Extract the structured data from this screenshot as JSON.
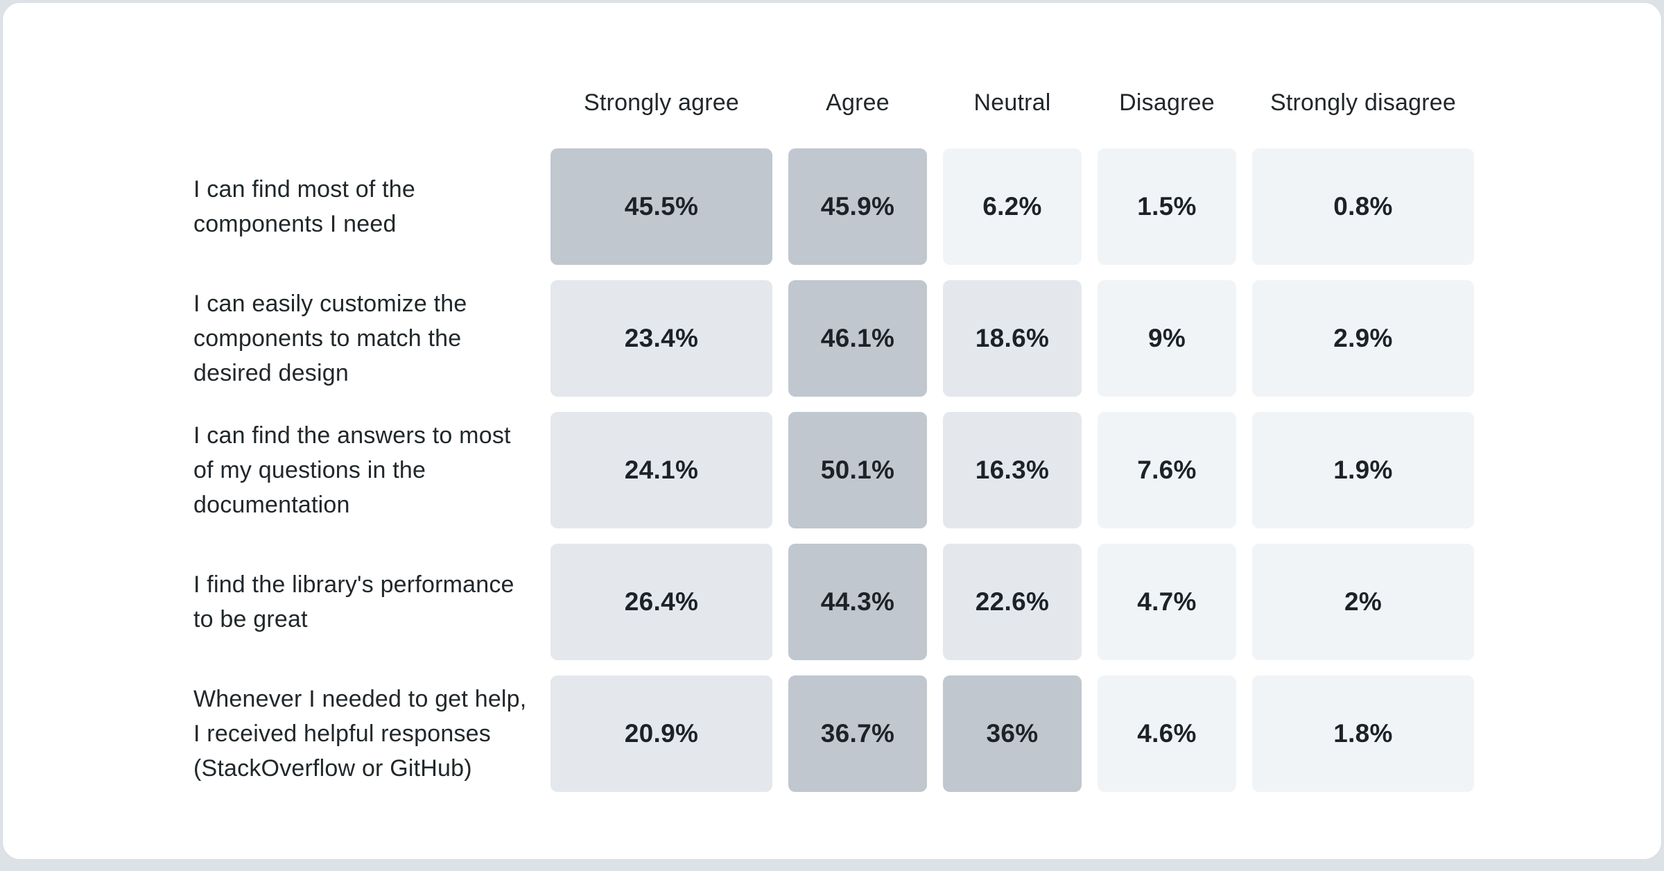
{
  "page": {
    "background_color": "#dde2e7",
    "card_background": "#ffffff",
    "card_border_color": "#d6dbe1"
  },
  "chart_data": {
    "type": "heatmap",
    "title": "",
    "columns": [
      "Strongly agree",
      "Agree",
      "Neutral",
      "Disagree",
      "Strongly disagree"
    ],
    "rows": [
      {
        "label_lines": [
          "I can find most of the",
          "components I need"
        ],
        "values": [
          "45.5%",
          "45.9%",
          "6.2%",
          "1.5%",
          "0.8%"
        ]
      },
      {
        "label_lines": [
          "I can easily customize the",
          "components to match the",
          "desired design"
        ],
        "values": [
          "23.4%",
          "46.1%",
          "18.6%",
          "9%",
          "2.9%"
        ]
      },
      {
        "label_lines": [
          "I can find the answers to most",
          "of my questions in the",
          "documentation"
        ],
        "values": [
          "24.1%",
          "50.1%",
          "16.3%",
          "7.6%",
          "1.9%"
        ]
      },
      {
        "label_lines": [
          "I find the library's performance",
          "to be great"
        ],
        "values": [
          "26.4%",
          "44.3%",
          "22.6%",
          "4.7%",
          "2%"
        ]
      },
      {
        "label_lines": [
          "Whenever I needed to get help,",
          "I received helpful responses",
          "(StackOverflow or GitHub)"
        ],
        "values": [
          "20.9%",
          "36.7%",
          "36%",
          "4.6%",
          "1.8%"
        ]
      }
    ],
    "color_scale": {
      "dark": "#c0c7ce",
      "medium": "#e4e8ec",
      "light": "#f1f4f7",
      "dark_min_percent": 30,
      "medium_min_percent": 12
    },
    "header_text_color": "#21272a",
    "label_text_color": "#21272a",
    "value_text_color": "#1c2228",
    "legend_position": "none",
    "grid": "off"
  }
}
